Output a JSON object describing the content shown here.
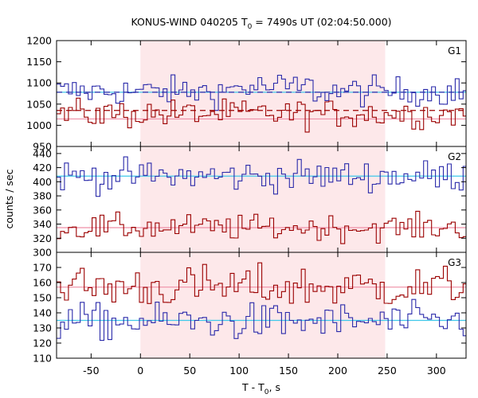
{
  "chart_data": {
    "type": "line",
    "title": {
      "prefix": "KONUS-WIND 040205 T",
      "sub": "0",
      "suffix": " = 7490s UT (02:04:50.000)"
    },
    "xlabel": {
      "prefix": "T - T",
      "sub": "0",
      "suffix": ", s"
    },
    "ylabel": "counts / sec",
    "xlim": [
      -85,
      330
    ],
    "x_ticks": [
      -50,
      0,
      50,
      100,
      150,
      200,
      250,
      300
    ],
    "shaded_interval": [
      0,
      248
    ],
    "colors": {
      "blue": "#2a2aaa",
      "red": "#9b0000",
      "cyan": "#3fc9ea",
      "pink": "#ef8fa6",
      "shade": "#fde8ea"
    },
    "panels": [
      {
        "label": "G1",
        "ylim": [
          950,
          1200
        ],
        "y_ticks": [
          950,
          1000,
          1050,
          1100,
          1150,
          1200
        ],
        "series": [
          {
            "color": "blue",
            "bg_level": 1078,
            "dashed_level": 1078,
            "mean": 1080,
            "noise": 17
          },
          {
            "color": "red",
            "bg_level": 1015,
            "dashed_level": 1035,
            "mean": 1027,
            "noise": 17
          }
        ]
      },
      {
        "label": "G2",
        "ylim": [
          300,
          450
        ],
        "y_ticks": [
          300,
          320,
          340,
          360,
          380,
          400,
          420,
          440
        ],
        "series": [
          {
            "color": "blue",
            "bg_level": 408,
            "mean": 408,
            "noise": 11
          },
          {
            "color": "red",
            "bg_level": 335,
            "mean": 335,
            "noise": 9
          }
        ]
      },
      {
        "label": "G3",
        "ylim": [
          110,
          180
        ],
        "y_ticks": [
          110,
          120,
          130,
          140,
          150,
          160,
          170
        ],
        "series": [
          {
            "color": "red",
            "bg_level": 157,
            "mean": 157,
            "noise": 7
          },
          {
            "color": "blue",
            "bg_level": 135,
            "mean": 134,
            "noise": 6
          }
        ]
      }
    ]
  }
}
